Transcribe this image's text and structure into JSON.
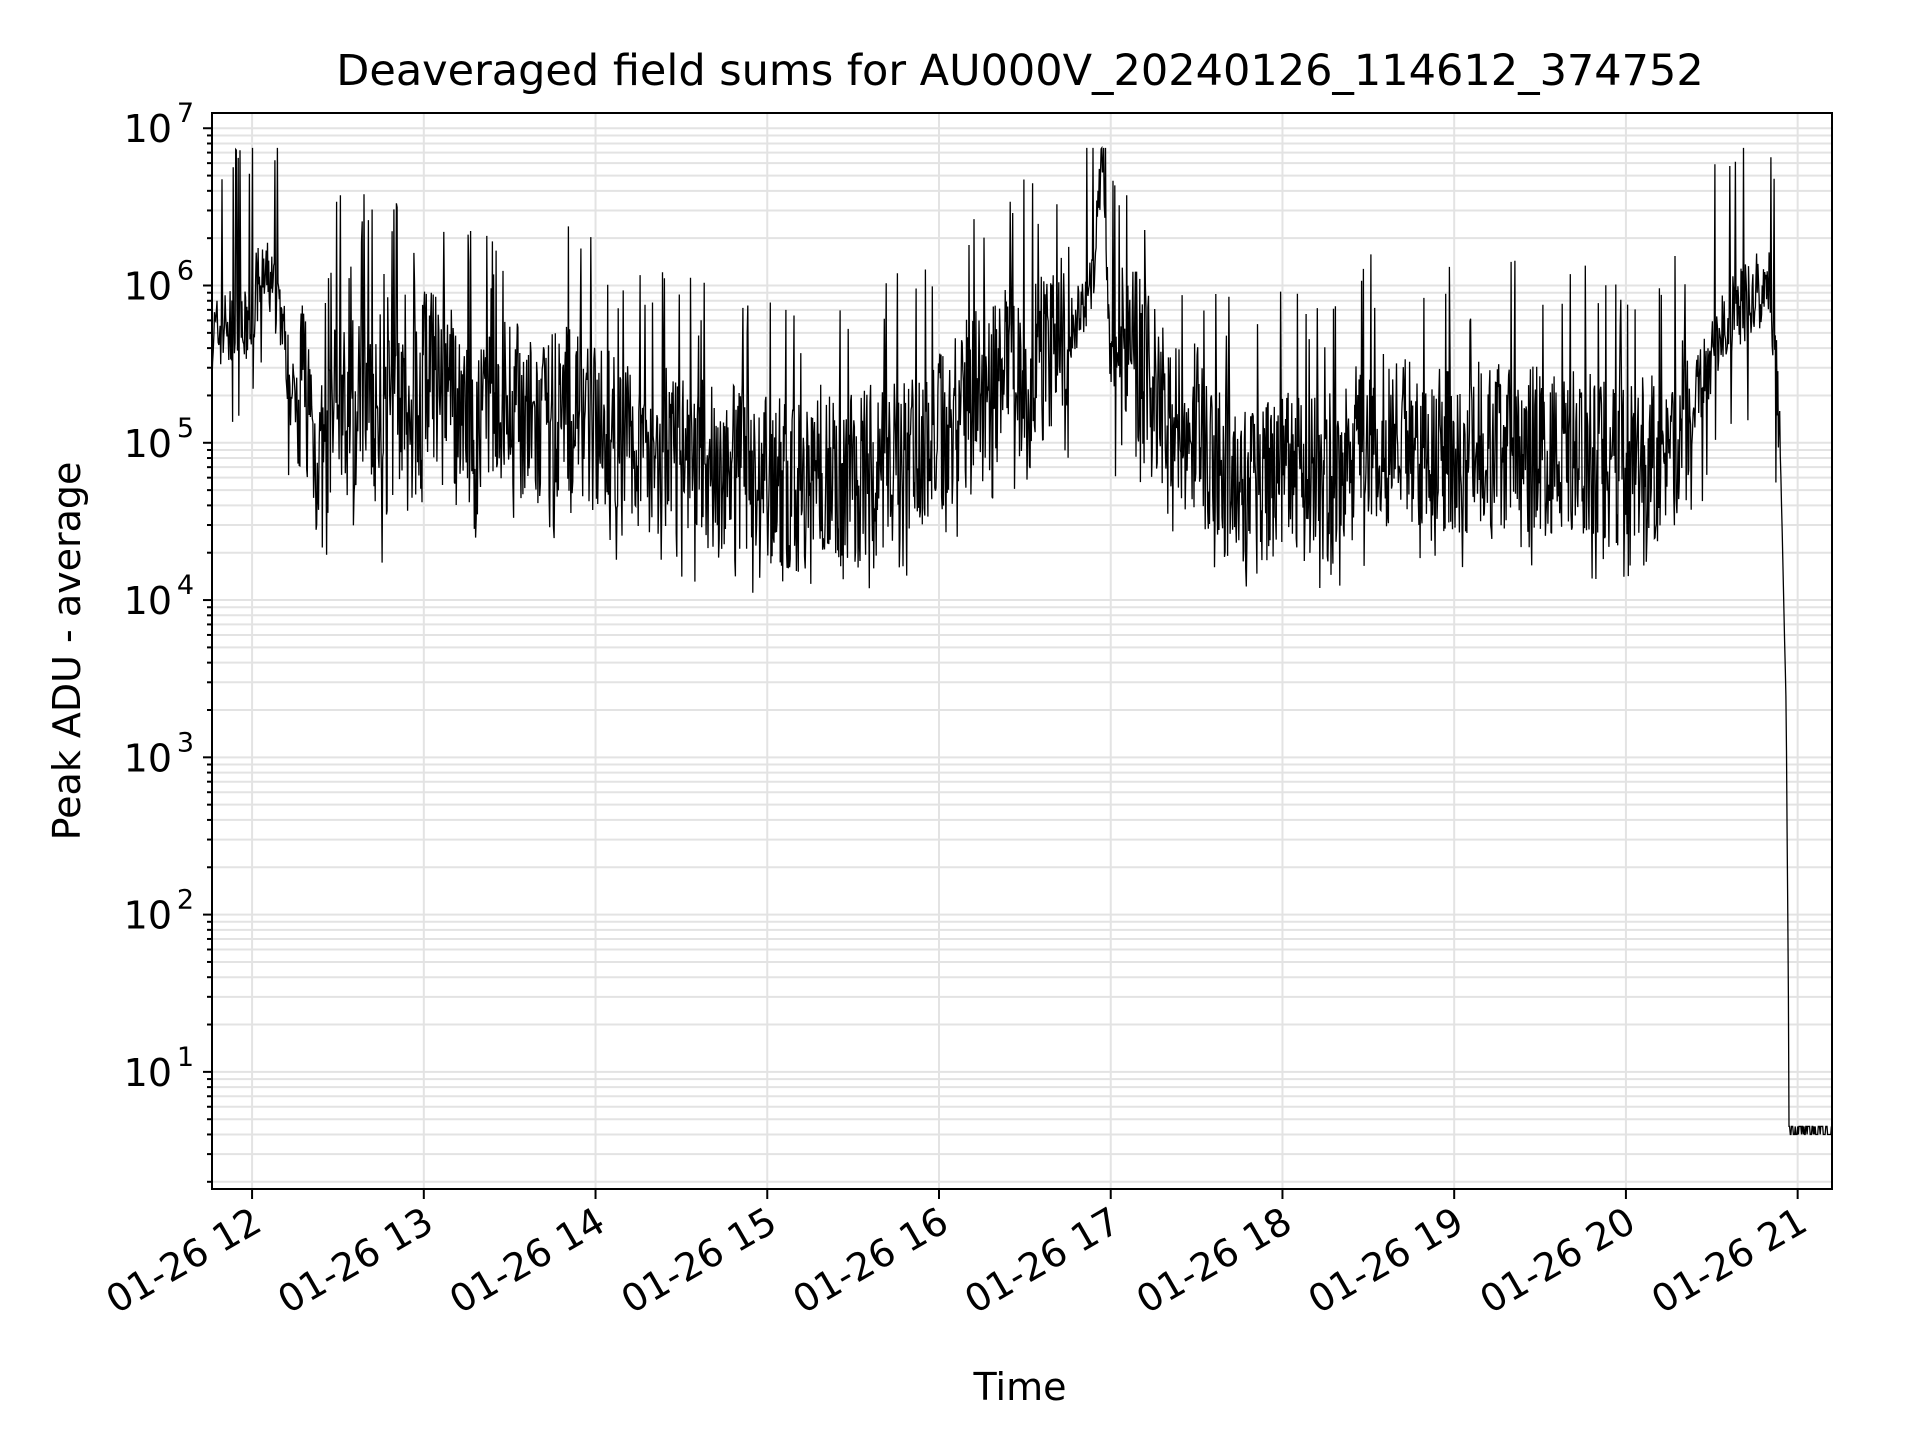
{
  "chart_data": {
    "type": "line",
    "title": "Deaveraged field sums for AU000V_20240126_114612_374752",
    "xlabel": "Time",
    "ylabel": "Peak ADU - average",
    "yscale": "log",
    "ylim": [
      1.8,
      12500000
    ],
    "xlim": [
      "2024-01-26 11:46",
      "2024-01-26 21:12"
    ],
    "grid": "both major and minor, light gray",
    "line_color": "#000000",
    "x_tick_labels": [
      "01-26 12",
      "01-26 13",
      "01-26 14",
      "01-26 15",
      "01-26 16",
      "01-26 17",
      "01-26 18",
      "01-26 19",
      "01-26 20",
      "01-26 21"
    ],
    "x_tick_values": [
      "2024-01-26 12:00",
      "2024-01-26 13:00",
      "2024-01-26 14:00",
      "2024-01-26 15:00",
      "2024-01-26 16:00",
      "2024-01-26 17:00",
      "2024-01-26 18:00",
      "2024-01-26 19:00",
      "2024-01-26 20:00",
      "2024-01-26 21:00"
    ],
    "y_ticks": [
      {
        "base": "10",
        "exp": "1",
        "value": 10
      },
      {
        "base": "10",
        "exp": "2",
        "value": 100
      },
      {
        "base": "10",
        "exp": "3",
        "value": 1000
      },
      {
        "base": "10",
        "exp": "4",
        "value": 10000
      },
      {
        "base": "10",
        "exp": "5",
        "value": 100000
      },
      {
        "base": "10",
        "exp": "6",
        "value": 1000000
      },
      {
        "base": "10",
        "exp": "7",
        "value": 10000000
      }
    ],
    "series": [
      {
        "x": [
          "2024-01-26 11:46",
          "2024-01-26 11:50",
          "2024-01-26 11:54",
          "2024-01-26 11:58",
          "2024-01-26 12:02",
          "2024-01-26 12:06",
          "2024-01-26 12:10",
          "2024-01-26 12:14",
          "2024-01-26 12:18",
          "2024-01-26 12:22",
          "2024-01-26 12:26",
          "2024-01-26 12:30",
          "2024-01-26 12:35",
          "2024-01-26 12:40",
          "2024-01-26 12:45",
          "2024-01-26 12:50",
          "2024-01-26 12:55",
          "2024-01-26 13:00",
          "2024-01-26 13:10",
          "2024-01-26 13:20",
          "2024-01-26 13:30",
          "2024-01-26 13:40",
          "2024-01-26 13:50",
          "2024-01-26 14:00",
          "2024-01-26 14:10",
          "2024-01-26 14:20",
          "2024-01-26 14:30",
          "2024-01-26 14:40",
          "2024-01-26 14:50",
          "2024-01-26 15:00",
          "2024-01-26 15:10",
          "2024-01-26 15:20",
          "2024-01-26 15:30",
          "2024-01-26 15:40",
          "2024-01-26 15:50",
          "2024-01-26 16:00",
          "2024-01-26 16:10",
          "2024-01-26 16:20",
          "2024-01-26 16:30",
          "2024-01-26 16:40",
          "2024-01-26 16:45",
          "2024-01-26 16:50",
          "2024-01-26 16:54",
          "2024-01-26 16:57",
          "2024-01-26 17:00",
          "2024-01-26 17:05",
          "2024-01-26 17:10",
          "2024-01-26 17:20",
          "2024-01-26 17:30",
          "2024-01-26 17:40",
          "2024-01-26 17:50",
          "2024-01-26 18:00",
          "2024-01-26 18:15",
          "2024-01-26 18:30",
          "2024-01-26 18:45",
          "2024-01-26 19:00",
          "2024-01-26 19:15",
          "2024-01-26 19:30",
          "2024-01-26 19:45",
          "2024-01-26 20:00",
          "2024-01-26 20:15",
          "2024-01-26 20:25",
          "2024-01-26 20:35",
          "2024-01-26 20:45",
          "2024-01-26 20:50",
          "2024-01-26 20:52",
          "2024-01-26 20:54",
          "2024-01-26 20:56",
          "2024-01-26 20:57",
          "2024-01-26 21:00",
          "2024-01-26 21:05",
          "2024-01-26 21:12"
        ],
        "values": [
          450000,
          550000,
          500000,
          520000,
          1000000,
          1100000,
          700000,
          180000,
          300000,
          90000,
          60000,
          300000,
          80000,
          400000,
          70000,
          250000,
          90000,
          300000,
          200000,
          120000,
          200000,
          110000,
          180000,
          130000,
          100000,
          90000,
          80000,
          70000,
          75000,
          60000,
          50000,
          70000,
          60000,
          70000,
          90000,
          120000,
          180000,
          250000,
          300000,
          400000,
          500000,
          700000,
          1200000,
          6000000,
          300000,
          400000,
          350000,
          150000,
          120000,
          60000,
          50000,
          60000,
          60000,
          100000,
          110000,
          90000,
          100000,
          90000,
          85000,
          80000,
          85000,
          200000,
          600000,
          900000,
          1000000,
          500000,
          80000,
          2000,
          8,
          4,
          4,
          4
        ]
      }
    ]
  }
}
